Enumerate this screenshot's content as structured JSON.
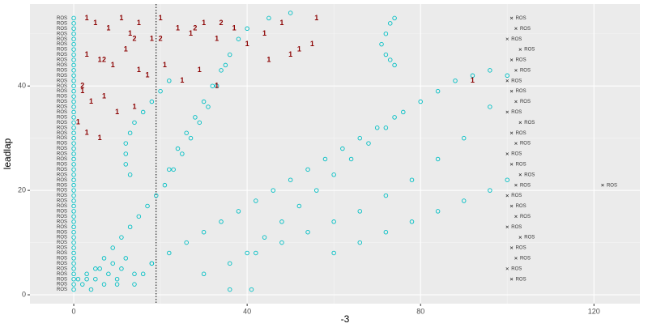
{
  "chart_data": {
    "type": "scatter",
    "xlabel": "-3",
    "ylabel": "leadlap",
    "xlim": [
      -10.1,
      130.6
    ],
    "ylim": [
      -1.7,
      55.7
    ],
    "xticks": [
      0,
      40,
      80,
      120
    ],
    "yticks": [
      0,
      20,
      40
    ],
    "minor_xticks": [
      20,
      60,
      100
    ],
    "minor_yticks": [
      10,
      30,
      50
    ],
    "grid": true,
    "vline": 19,
    "series": [
      {
        "color": "#00BFC4",
        "marker": "circle",
        "x": [
          0,
          0,
          0,
          0,
          0,
          0,
          0,
          0,
          0,
          0,
          0,
          0,
          0,
          0,
          0,
          0,
          0,
          0,
          0,
          0,
          0,
          0,
          0,
          0,
          0,
          0,
          0,
          0,
          0,
          0,
          0,
          0,
          0,
          0,
          0,
          0,
          0,
          0,
          0,
          0,
          0,
          0,
          0,
          0,
          0,
          0,
          0,
          0,
          0,
          0,
          0,
          0,
          0,
          3,
          5,
          7,
          9,
          11,
          13,
          15,
          17,
          19,
          21,
          23,
          25,
          27,
          29,
          31,
          33,
          35,
          10,
          14,
          18,
          22,
          26,
          30,
          34,
          38,
          42,
          46,
          50,
          54,
          58,
          62,
          66,
          70,
          74,
          30,
          36,
          42,
          48,
          54,
          60,
          66,
          72,
          78,
          84,
          90,
          96,
          100,
          60,
          66,
          72,
          78,
          84,
          90,
          96,
          100,
          74,
          73,
          72,
          71,
          72,
          73,
          74,
          22,
          24,
          26,
          28,
          30,
          32,
          34,
          36,
          38,
          40,
          45,
          50,
          13,
          12,
          12,
          12,
          13,
          14,
          16,
          18,
          20,
          22,
          1,
          2,
          3,
          4,
          5,
          6,
          7,
          8,
          9,
          10,
          11,
          12,
          14,
          16,
          18,
          40,
          44,
          48,
          52,
          56,
          60,
          64,
          68,
          72,
          76,
          80,
          84,
          88,
          92,
          96,
          36,
          41
        ],
        "y": [
          1,
          2,
          3,
          4,
          5,
          6,
          7,
          8,
          9,
          10,
          11,
          12,
          13,
          14,
          15,
          16,
          17,
          18,
          19,
          20,
          21,
          22,
          23,
          24,
          25,
          26,
          27,
          28,
          29,
          30,
          31,
          32,
          33,
          34,
          35,
          36,
          37,
          38,
          39,
          40,
          41,
          42,
          43,
          44,
          45,
          46,
          47,
          48,
          49,
          50,
          51,
          52,
          53,
          3,
          5,
          7,
          9,
          11,
          13,
          15,
          17,
          19,
          21,
          24,
          27,
          30,
          33,
          36,
          40,
          44,
          2,
          4,
          6,
          8,
          10,
          12,
          14,
          16,
          18,
          20,
          22,
          24,
          26,
          28,
          30,
          32,
          34,
          4,
          6,
          8,
          10,
          12,
          14,
          16,
          19,
          22,
          26,
          30,
          36,
          42,
          8,
          10,
          12,
          14,
          16,
          18,
          20,
          22,
          53,
          52,
          50,
          48,
          46,
          45,
          44,
          24,
          28,
          31,
          34,
          37,
          40,
          43,
          46,
          49,
          51,
          53,
          54,
          23,
          25,
          27,
          29,
          31,
          33,
          35,
          37,
          39,
          41,
          3,
          2,
          4,
          1,
          3,
          5,
          2,
          4,
          6,
          3,
          5,
          7,
          2,
          4,
          6,
          8,
          11,
          14,
          17,
          20,
          23,
          26,
          29,
          32,
          35,
          37,
          39,
          41,
          42,
          43,
          1,
          1
        ]
      }
    ],
    "text_labels": [
      {
        "label": "ROS",
        "color": "#333333",
        "x": -1.5,
        "y": [
          1,
          2,
          3,
          4,
          5,
          6,
          7,
          8,
          9,
          10,
          11,
          12,
          13,
          14,
          15,
          16,
          17,
          18,
          19,
          20,
          21,
          22,
          23,
          24,
          25,
          26,
          27,
          28,
          29,
          30,
          31,
          32,
          33,
          34,
          35,
          36,
          37,
          38,
          39,
          40,
          41,
          42,
          43,
          44,
          45,
          46,
          47,
          48,
          49,
          50,
          51,
          52,
          53
        ]
      },
      {
        "label": "1",
        "color": "#8B0000",
        "x": [
          3,
          5,
          8,
          11,
          13,
          15,
          18,
          20,
          24,
          27,
          30,
          33,
          37,
          40,
          44,
          48,
          52,
          56,
          3,
          6,
          9,
          12,
          15,
          17,
          21,
          25,
          29,
          33,
          2,
          4,
          7,
          10,
          14,
          1,
          3,
          6,
          45,
          50,
          55,
          92
        ],
        "y": [
          53,
          52,
          51,
          53,
          50,
          52,
          49,
          53,
          51,
          50,
          52,
          49,
          51,
          48,
          50,
          52,
          47,
          53,
          46,
          45,
          44,
          47,
          43,
          42,
          44,
          41,
          43,
          40,
          39,
          37,
          38,
          35,
          36,
          33,
          31,
          30,
          45,
          46,
          48,
          41
        ]
      },
      {
        "label": "2",
        "color": "#8B0000",
        "x": [
          2,
          7,
          14,
          28,
          34,
          20
        ],
        "y": [
          40,
          45,
          49,
          51,
          52,
          49
        ]
      },
      {
        "label": "ROS",
        "color": "#333333",
        "marker": "x",
        "x": [
          101,
          100,
          102,
          101,
          103,
          100,
          102,
          101,
          100,
          102,
          103,
          101,
          100,
          102,
          101,
          103,
          100,
          102,
          101,
          100,
          102,
          101,
          103,
          100,
          102,
          101,
          122
        ],
        "y": [
          3,
          5,
          7,
          9,
          11,
          13,
          15,
          17,
          19,
          21,
          23,
          25,
          27,
          29,
          31,
          33,
          35,
          37,
          39,
          41,
          43,
          45,
          47,
          49,
          51,
          53,
          21
        ]
      }
    ]
  }
}
